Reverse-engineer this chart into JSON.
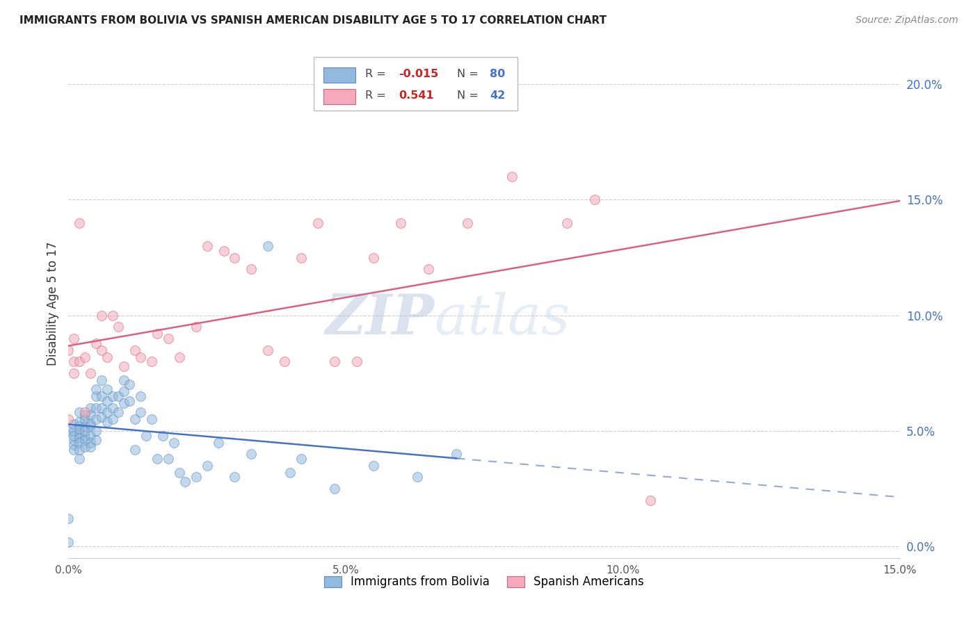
{
  "title": "IMMIGRANTS FROM BOLIVIA VS SPANISH AMERICAN DISABILITY AGE 5 TO 17 CORRELATION CHART",
  "source": "Source: ZipAtlas.com",
  "ylabel": "Disability Age 5 to 17",
  "xlim": [
    0.0,
    0.15
  ],
  "ylim": [
    -0.005,
    0.215
  ],
  "xticks": [
    0.0,
    0.025,
    0.05,
    0.075,
    0.1,
    0.125,
    0.15
  ],
  "xtick_labels": [
    "0.0%",
    "",
    "5.0%",
    "",
    "10.0%",
    "",
    "15.0%"
  ],
  "yticks": [
    0.0,
    0.05,
    0.1,
    0.15,
    0.2
  ],
  "ytick_labels_right": [
    "0.0%",
    "5.0%",
    "10.0%",
    "15.0%",
    "20.0%"
  ],
  "right_axis_color": "#4472c4",
  "bolivia_color": "#92b9de",
  "bolivia_edge": "#5b8fbc",
  "spanish_color": "#f4aabb",
  "spanish_edge": "#d96080",
  "bolivia_line_color": "#4472c4",
  "spanish_line_color": "#d96080",
  "R_bolivia": -0.015,
  "N_bolivia": 80,
  "R_spanish": 0.541,
  "N_spanish": 42,
  "bolivia_x": [
    0.0,
    0.0,
    0.001,
    0.001,
    0.001,
    0.001,
    0.001,
    0.001,
    0.002,
    0.002,
    0.002,
    0.002,
    0.002,
    0.002,
    0.002,
    0.002,
    0.002,
    0.003,
    0.003,
    0.003,
    0.003,
    0.003,
    0.003,
    0.003,
    0.004,
    0.004,
    0.004,
    0.004,
    0.004,
    0.004,
    0.004,
    0.005,
    0.005,
    0.005,
    0.005,
    0.005,
    0.005,
    0.006,
    0.006,
    0.006,
    0.006,
    0.007,
    0.007,
    0.007,
    0.007,
    0.008,
    0.008,
    0.008,
    0.009,
    0.009,
    0.01,
    0.01,
    0.01,
    0.011,
    0.011,
    0.012,
    0.012,
    0.013,
    0.013,
    0.014,
    0.015,
    0.016,
    0.017,
    0.018,
    0.019,
    0.02,
    0.021,
    0.023,
    0.025,
    0.027,
    0.03,
    0.033,
    0.036,
    0.04,
    0.042,
    0.048,
    0.055,
    0.063,
    0.07,
    0.0
  ],
  "bolivia_y": [
    0.05,
    0.012,
    0.05,
    0.046,
    0.044,
    0.053,
    0.048,
    0.042,
    0.052,
    0.049,
    0.047,
    0.054,
    0.051,
    0.045,
    0.058,
    0.042,
    0.038,
    0.052,
    0.048,
    0.055,
    0.046,
    0.043,
    0.05,
    0.057,
    0.052,
    0.048,
    0.045,
    0.053,
    0.06,
    0.057,
    0.043,
    0.065,
    0.06,
    0.055,
    0.05,
    0.046,
    0.068,
    0.065,
    0.06,
    0.056,
    0.072,
    0.068,
    0.063,
    0.058,
    0.054,
    0.065,
    0.06,
    0.055,
    0.065,
    0.058,
    0.072,
    0.067,
    0.062,
    0.07,
    0.063,
    0.055,
    0.042,
    0.065,
    0.058,
    0.048,
    0.055,
    0.038,
    0.048,
    0.038,
    0.045,
    0.032,
    0.028,
    0.03,
    0.035,
    0.045,
    0.03,
    0.04,
    0.13,
    0.032,
    0.038,
    0.025,
    0.035,
    0.03,
    0.04,
    0.002
  ],
  "spanish_x": [
    0.0,
    0.0,
    0.001,
    0.001,
    0.001,
    0.002,
    0.002,
    0.003,
    0.003,
    0.004,
    0.005,
    0.006,
    0.006,
    0.007,
    0.008,
    0.009,
    0.01,
    0.012,
    0.013,
    0.015,
    0.016,
    0.018,
    0.02,
    0.023,
    0.025,
    0.028,
    0.03,
    0.033,
    0.036,
    0.039,
    0.042,
    0.045,
    0.048,
    0.052,
    0.055,
    0.06,
    0.065,
    0.072,
    0.08,
    0.09,
    0.095,
    0.105
  ],
  "spanish_y": [
    0.055,
    0.085,
    0.08,
    0.075,
    0.09,
    0.14,
    0.08,
    0.058,
    0.082,
    0.075,
    0.088,
    0.085,
    0.1,
    0.082,
    0.1,
    0.095,
    0.078,
    0.085,
    0.082,
    0.08,
    0.092,
    0.09,
    0.082,
    0.095,
    0.13,
    0.128,
    0.125,
    0.12,
    0.085,
    0.08,
    0.125,
    0.14,
    0.08,
    0.08,
    0.125,
    0.14,
    0.12,
    0.14,
    0.16,
    0.14,
    0.15,
    0.02
  ],
  "watermark_zip": "ZIP",
  "watermark_atlas": "atlas",
  "marker_size": 100,
  "marker_alpha": 0.55
}
